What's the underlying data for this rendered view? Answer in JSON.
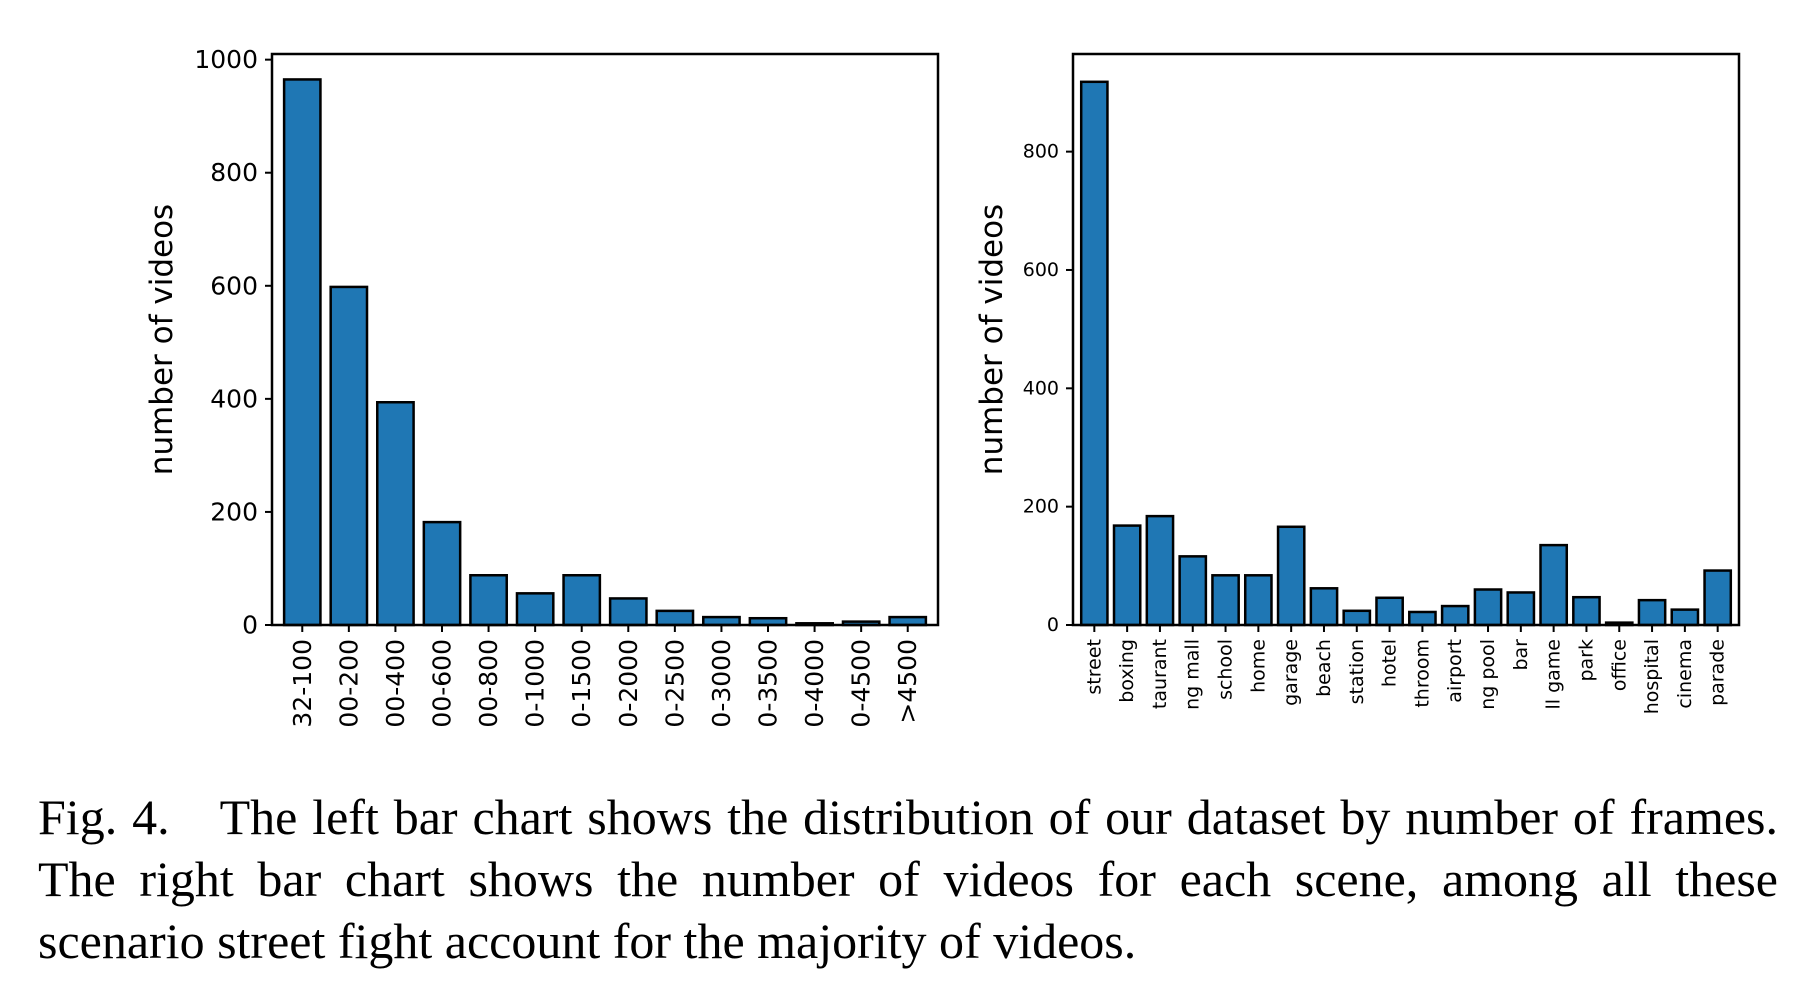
{
  "caption": "Fig. 4. The left bar chart shows the distribution of our dataset by number of frames. The right bar chart shows the number of videos for each scene, among all these scenario street fight account for the majority of videos.",
  "colors": {
    "bar": "#1f77b4",
    "edge": "#000000"
  },
  "chart_data": [
    {
      "type": "bar",
      "title": "",
      "xlabel": "",
      "ylabel": "number of videos",
      "ylim": [
        0,
        1010
      ],
      "yticks": [
        0,
        200,
        400,
        600,
        800,
        1000
      ],
      "categories": [
        "32-100",
        "00-200",
        "00-400",
        "00-600",
        "00-800",
        "0-1000",
        "0-1500",
        "0-2000",
        "0-2500",
        "0-3000",
        "0-3500",
        "0-4000",
        "0-4500",
        ">4500"
      ],
      "values": [
        965,
        598,
        394,
        182,
        88,
        56,
        88,
        47,
        25,
        14,
        12,
        3,
        6,
        14
      ],
      "grid": false
    },
    {
      "type": "bar",
      "title": "",
      "xlabel": "",
      "ylabel": "number of videos",
      "ylim": [
        0,
        965
      ],
      "yticks": [
        0,
        200,
        400,
        600,
        800
      ],
      "categories": [
        "street",
        "boxing",
        "taurant",
        "ng mall",
        "school",
        "home",
        "garage",
        "beach",
        "station",
        "hotel",
        "throom",
        "airport",
        "ng pool",
        "bar",
        "ll game",
        "park",
        "office",
        "hospital",
        "cinema",
        "parade"
      ],
      "values": [
        918,
        168,
        184,
        116,
        84,
        84,
        166,
        62,
        24,
        46,
        22,
        32,
        60,
        55,
        135,
        47,
        4,
        42,
        26,
        92
      ],
      "grid": false
    }
  ]
}
